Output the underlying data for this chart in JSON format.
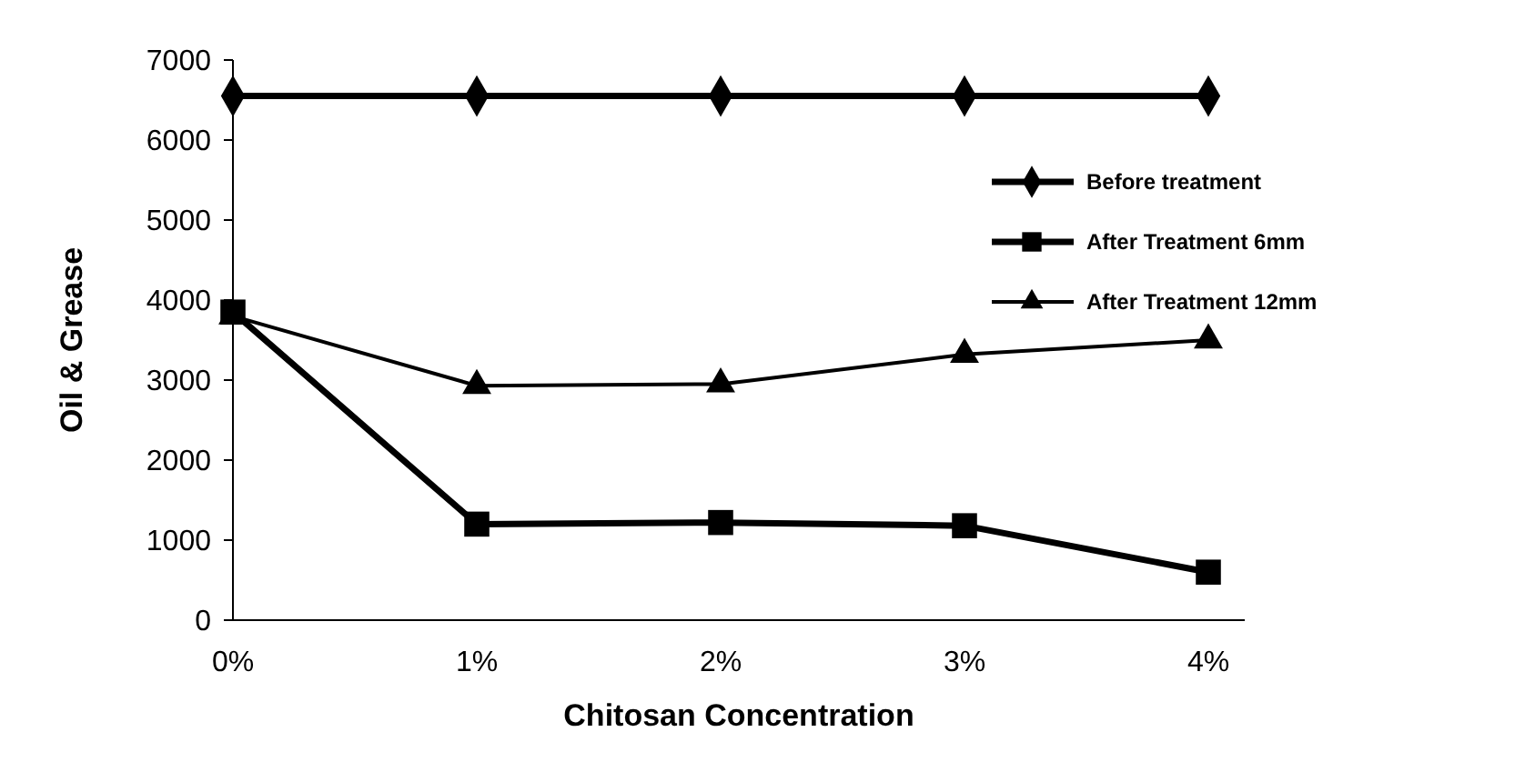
{
  "chart_data": {
    "type": "line",
    "xlabel": "Chitosan Concentration",
    "ylabel": "Oil & Grease",
    "categories": [
      "0%",
      "1%",
      "2%",
      "3%",
      "4%"
    ],
    "ylim": [
      0,
      7000
    ],
    "yticks": [
      0,
      1000,
      2000,
      3000,
      4000,
      5000,
      6000,
      7000
    ],
    "legend": "top right",
    "grid": false,
    "series": [
      {
        "name": "Before treatment",
        "color": "#000000",
        "marker": "diamond",
        "values": [
          6550,
          6550,
          6550,
          6550,
          6550
        ]
      },
      {
        "name": "After Treatment 6mm",
        "color": "#000000",
        "marker": "square",
        "values": [
          3850,
          1200,
          1220,
          1180,
          600
        ]
      },
      {
        "name": "After Treatment 12mm",
        "color": "#000000",
        "marker": "triangle",
        "values": [
          3800,
          2930,
          2950,
          3320,
          3500
        ]
      }
    ]
  }
}
